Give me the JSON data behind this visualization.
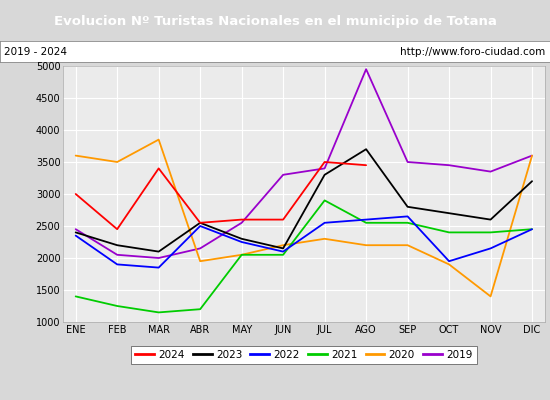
{
  "title": "Evolucion Nº Turistas Nacionales en el municipio de Totana",
  "subtitle_left": "2019 - 2024",
  "subtitle_right": "http://www.foro-ciudad.com",
  "months": [
    "ENE",
    "FEB",
    "MAR",
    "ABR",
    "MAY",
    "JUN",
    "JUL",
    "AGO",
    "SEP",
    "OCT",
    "NOV",
    "DIC"
  ],
  "ylim": [
    1000,
    5000
  ],
  "yticks": [
    1000,
    1500,
    2000,
    2500,
    3000,
    3500,
    4000,
    4500,
    5000
  ],
  "series": {
    "2024": {
      "color": "#ff0000",
      "data": [
        3000,
        2450,
        3400,
        2550,
        2600,
        2600,
        3500,
        3450,
        null,
        null,
        null,
        null
      ]
    },
    "2023": {
      "color": "#000000",
      "data": [
        2400,
        2200,
        2100,
        2550,
        2300,
        2150,
        3300,
        3700,
        2800,
        2700,
        2600,
        3200
      ]
    },
    "2022": {
      "color": "#0000ff",
      "data": [
        2350,
        1900,
        1850,
        2500,
        2250,
        2100,
        2550,
        2600,
        2650,
        1950,
        2150,
        2450
      ]
    },
    "2021": {
      "color": "#00cc00",
      "data": [
        1400,
        1250,
        1150,
        1200,
        2050,
        2050,
        2900,
        2550,
        2550,
        2400,
        2400,
        2450
      ]
    },
    "2020": {
      "color": "#ff9900",
      "data": [
        3600,
        3500,
        3850,
        1950,
        2050,
        2200,
        2300,
        2200,
        2200,
        1900,
        1400,
        3600
      ]
    },
    "2019": {
      "color": "#9900cc",
      "data": [
        2450,
        2050,
        2000,
        2150,
        2550,
        3300,
        3400,
        4950,
        3500,
        3450,
        3350,
        3600
      ]
    }
  },
  "title_bg": "#4472c4",
  "title_color": "#ffffff",
  "title_fontsize": 9.5,
  "subtitle_fontsize": 7.5,
  "tick_fontsize": 7,
  "legend_fontsize": 7.5,
  "legend_order": [
    "2024",
    "2023",
    "2022",
    "2021",
    "2020",
    "2019"
  ],
  "background_color": "#d8d8d8",
  "plot_bg": "#ebebeb",
  "grid_color": "#ffffff",
  "linewidth": 1.3
}
